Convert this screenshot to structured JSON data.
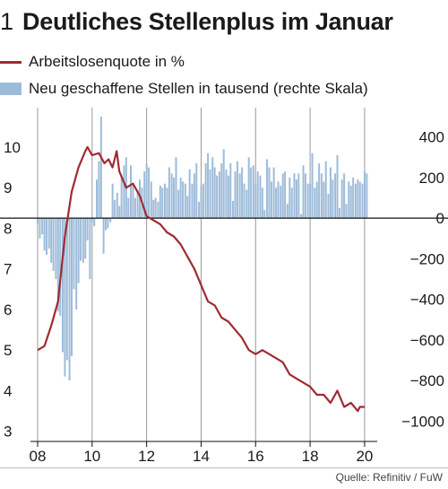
{
  "header": {
    "number": "1",
    "title": "Deutliches Stellenplus im Januar"
  },
  "legend": {
    "line_label": "Arbeitslosenquote in %",
    "bar_label": "Neu geschaffene Stellen in tausend (rechte Skala)"
  },
  "source": "Quelle: Refinitiv / FuW",
  "colors": {
    "line": "#a02a32",
    "bars": "#9dbbd9",
    "axis": "#111111",
    "grid": "#9a9a9a"
  },
  "chart_data": {
    "type": "bar+line",
    "title": "Deutliches Stellenplus im Januar",
    "xlabel": "",
    "ylabel": "",
    "x_ticks": [
      "08",
      "10",
      "12",
      "14",
      "16",
      "18",
      "20"
    ],
    "x_range": [
      2008.0,
      2020.2
    ],
    "y_left": {
      "ticks": [
        "3",
        "4",
        "5",
        "6",
        "7",
        "8",
        "9",
        "10"
      ],
      "range": [
        2.75,
        10.75
      ]
    },
    "y_right": {
      "ticks": [
        "−1000",
        "−800",
        "−600",
        "−400",
        "−200",
        "0",
        "200",
        "400"
      ],
      "range": [
        -1100,
        500
      ]
    },
    "grid": "none",
    "legend_position": "top-left",
    "series": [
      {
        "name": "Arbeitslosenquote in %",
        "type": "line",
        "axis": "left",
        "points": [
          [
            2008.0,
            5.0
          ],
          [
            2008.25,
            5.1
          ],
          [
            2008.5,
            5.6
          ],
          [
            2008.75,
            6.2
          ],
          [
            2009.0,
            7.8
          ],
          [
            2009.25,
            8.9
          ],
          [
            2009.5,
            9.5
          ],
          [
            2009.75,
            9.9
          ],
          [
            2009.83,
            10.0
          ],
          [
            2010.0,
            9.8
          ],
          [
            2010.25,
            9.85
          ],
          [
            2010.45,
            9.6
          ],
          [
            2010.6,
            9.7
          ],
          [
            2010.75,
            9.5
          ],
          [
            2010.9,
            9.9
          ],
          [
            2011.0,
            9.4
          ],
          [
            2011.25,
            9.0
          ],
          [
            2011.5,
            9.1
          ],
          [
            2011.75,
            8.8
          ],
          [
            2012.0,
            8.3
          ],
          [
            2012.25,
            8.2
          ],
          [
            2012.5,
            8.1
          ],
          [
            2012.75,
            7.9
          ],
          [
            2013.0,
            7.8
          ],
          [
            2013.25,
            7.6
          ],
          [
            2013.5,
            7.3
          ],
          [
            2013.75,
            7.0
          ],
          [
            2014.0,
            6.6
          ],
          [
            2014.25,
            6.2
          ],
          [
            2014.5,
            6.1
          ],
          [
            2014.75,
            5.8
          ],
          [
            2015.0,
            5.7
          ],
          [
            2015.25,
            5.5
          ],
          [
            2015.5,
            5.3
          ],
          [
            2015.75,
            5.0
          ],
          [
            2016.0,
            4.9
          ],
          [
            2016.25,
            5.0
          ],
          [
            2016.5,
            4.9
          ],
          [
            2016.75,
            4.8
          ],
          [
            2017.0,
            4.7
          ],
          [
            2017.25,
            4.4
          ],
          [
            2017.5,
            4.3
          ],
          [
            2017.75,
            4.2
          ],
          [
            2018.0,
            4.1
          ],
          [
            2018.25,
            3.9
          ],
          [
            2018.5,
            3.9
          ],
          [
            2018.75,
            3.7
          ],
          [
            2019.0,
            4.0
          ],
          [
            2019.25,
            3.6
          ],
          [
            2019.5,
            3.7
          ],
          [
            2019.75,
            3.5
          ],
          [
            2019.83,
            3.6
          ],
          [
            2020.0,
            3.6
          ]
        ]
      },
      {
        "name": "Neu geschaffene Stellen in tausend (rechte Skala)",
        "type": "bar",
        "axis": "right",
        "points": [
          [
            2008.0,
            -30
          ],
          [
            2008.08,
            -100
          ],
          [
            2008.17,
            -80
          ],
          [
            2008.25,
            -160
          ],
          [
            2008.33,
            -180
          ],
          [
            2008.42,
            -150
          ],
          [
            2008.5,
            -220
          ],
          [
            2008.58,
            -260
          ],
          [
            2008.67,
            -300
          ],
          [
            2008.75,
            -460
          ],
          [
            2008.83,
            -480
          ],
          [
            2008.92,
            -660
          ],
          [
            2009.0,
            -780
          ],
          [
            2009.08,
            -700
          ],
          [
            2009.17,
            -800
          ],
          [
            2009.25,
            -680
          ],
          [
            2009.33,
            -350
          ],
          [
            2009.42,
            -450
          ],
          [
            2009.5,
            -320
          ],
          [
            2009.58,
            -210
          ],
          [
            2009.67,
            -220
          ],
          [
            2009.75,
            -200
          ],
          [
            2009.83,
            -110
          ],
          [
            2009.92,
            -300
          ],
          [
            2010.0,
            -20
          ],
          [
            2010.08,
            -40
          ],
          [
            2010.17,
            190
          ],
          [
            2010.25,
            280
          ],
          [
            2010.33,
            500
          ],
          [
            2010.42,
            -175
          ],
          [
            2010.5,
            -60
          ],
          [
            2010.58,
            -50
          ],
          [
            2010.67,
            -20
          ],
          [
            2010.75,
            170
          ],
          [
            2010.83,
            90
          ],
          [
            2010.92,
            125
          ],
          [
            2011.0,
            60
          ],
          [
            2011.08,
            210
          ],
          [
            2011.17,
            260
          ],
          [
            2011.25,
            300
          ],
          [
            2011.33,
            100
          ],
          [
            2011.42,
            260
          ],
          [
            2011.5,
            160
          ],
          [
            2011.58,
            100
          ],
          [
            2011.67,
            140
          ],
          [
            2011.75,
            190
          ],
          [
            2011.83,
            150
          ],
          [
            2011.92,
            230
          ],
          [
            2012.0,
            270
          ],
          [
            2012.08,
            250
          ],
          [
            2012.17,
            180
          ],
          [
            2012.25,
            90
          ],
          [
            2012.33,
            100
          ],
          [
            2012.42,
            80
          ],
          [
            2012.5,
            160
          ],
          [
            2012.58,
            150
          ],
          [
            2012.67,
            170
          ],
          [
            2012.75,
            150
          ],
          [
            2012.83,
            250
          ],
          [
            2012.92,
            220
          ],
          [
            2013.0,
            200
          ],
          [
            2013.08,
            300
          ],
          [
            2013.17,
            140
          ],
          [
            2013.25,
            200
          ],
          [
            2013.33,
            180
          ],
          [
            2013.42,
            170
          ],
          [
            2013.5,
            110
          ],
          [
            2013.58,
            240
          ],
          [
            2013.67,
            170
          ],
          [
            2013.75,
            220
          ],
          [
            2013.83,
            270
          ],
          [
            2013.92,
            80
          ],
          [
            2014.0,
            160
          ],
          [
            2014.08,
            170
          ],
          [
            2014.17,
            270
          ],
          [
            2014.25,
            320
          ],
          [
            2014.33,
            240
          ],
          [
            2014.42,
            300
          ],
          [
            2014.5,
            250
          ],
          [
            2014.58,
            210
          ],
          [
            2014.67,
            230
          ],
          [
            2014.75,
            270
          ],
          [
            2014.83,
            340
          ],
          [
            2014.92,
            240
          ],
          [
            2015.0,
            210
          ],
          [
            2015.08,
            270
          ],
          [
            2015.17,
            85
          ],
          [
            2015.25,
            230
          ],
          [
            2015.33,
            280
          ],
          [
            2015.42,
            220
          ],
          [
            2015.5,
            250
          ],
          [
            2015.58,
            170
          ],
          [
            2015.67,
            140
          ],
          [
            2015.75,
            300
          ],
          [
            2015.83,
            250
          ],
          [
            2015.92,
            260
          ],
          [
            2016.0,
            170
          ],
          [
            2016.08,
            230
          ],
          [
            2016.17,
            210
          ],
          [
            2016.25,
            150
          ],
          [
            2016.33,
            40
          ],
          [
            2016.42,
            290
          ],
          [
            2016.5,
            250
          ],
          [
            2016.58,
            180
          ],
          [
            2016.67,
            250
          ],
          [
            2016.75,
            150
          ],
          [
            2016.83,
            180
          ],
          [
            2016.92,
            160
          ],
          [
            2017.0,
            220
          ],
          [
            2017.08,
            230
          ],
          [
            2017.17,
            70
          ],
          [
            2017.25,
            200
          ],
          [
            2017.33,
            150
          ],
          [
            2017.42,
            220
          ],
          [
            2017.5,
            190
          ],
          [
            2017.58,
            220
          ],
          [
            2017.67,
            20
          ],
          [
            2017.75,
            260
          ],
          [
            2017.83,
            220
          ],
          [
            2017.92,
            170
          ],
          [
            2018.0,
            170
          ],
          [
            2018.08,
            320
          ],
          [
            2018.17,
            150
          ],
          [
            2018.25,
            180
          ],
          [
            2018.33,
            270
          ],
          [
            2018.42,
            220
          ],
          [
            2018.5,
            180
          ],
          [
            2018.58,
            280
          ],
          [
            2018.67,
            120
          ],
          [
            2018.75,
            250
          ],
          [
            2018.83,
            190
          ],
          [
            2018.92,
            220
          ],
          [
            2019.0,
            310
          ],
          [
            2019.08,
            50
          ],
          [
            2019.17,
            190
          ],
          [
            2019.25,
            220
          ],
          [
            2019.33,
            70
          ],
          [
            2019.42,
            180
          ],
          [
            2019.5,
            160
          ],
          [
            2019.58,
            200
          ],
          [
            2019.67,
            170
          ],
          [
            2019.75,
            190
          ],
          [
            2019.83,
            180
          ],
          [
            2019.92,
            170
          ],
          [
            2020.0,
            230
          ],
          [
            2020.08,
            220
          ]
        ]
      }
    ]
  }
}
